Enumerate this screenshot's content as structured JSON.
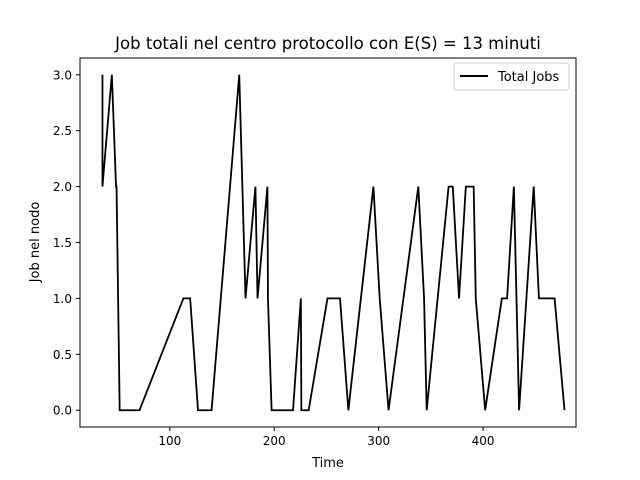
{
  "chart_data": {
    "type": "line",
    "title": "Job totali nel centro protocollo con E(S) = 13 minuti",
    "xlabel": "Time",
    "ylabel": "Job nel nodo",
    "xlim": [
      14,
      489
    ],
    "ylim": [
      -0.15,
      3.15
    ],
    "xticks": [
      100,
      200,
      300,
      400
    ],
    "yticks": [
      0.0,
      0.5,
      1.0,
      1.5,
      2.0,
      2.5,
      3.0
    ],
    "ytick_labels": [
      "0.0",
      "0.5",
      "1.0",
      "1.5",
      "2.0",
      "2.5",
      "3.0"
    ],
    "grid": false,
    "legend": "top-right",
    "series": [
      {
        "name": "Total Jobs",
        "color": "#000000",
        "x": [
          35.5,
          35.5,
          44.5,
          48.5,
          49.0,
          52.0,
          71.0,
          113.0,
          119.5,
          127.0,
          140.0,
          166.5,
          172.5,
          182.0,
          184.0,
          193.5,
          194.0,
          197.5,
          218.0,
          225.5,
          226.0,
          233.0,
          251.0,
          263.0,
          271.0,
          295.0,
          301.0,
          309.5,
          338.0,
          343.5,
          346.0,
          367.0,
          371.0,
          377.0,
          383.5,
          391.0,
          393.0,
          402.0,
          418.0,
          423.0,
          429.5,
          434.5,
          448.5,
          453.5,
          468.5,
          478.0
        ],
        "y": [
          3,
          2,
          3,
          2,
          2,
          0,
          0,
          1,
          1,
          0,
          0,
          3,
          1,
          2,
          1,
          2,
          1,
          0,
          0,
          1,
          0,
          0,
          1,
          1,
          0,
          2,
          1,
          0,
          2,
          1,
          0,
          2,
          2,
          1,
          2,
          2,
          1,
          0,
          1,
          1,
          2,
          0,
          2,
          1,
          1,
          0
        ]
      }
    ]
  }
}
